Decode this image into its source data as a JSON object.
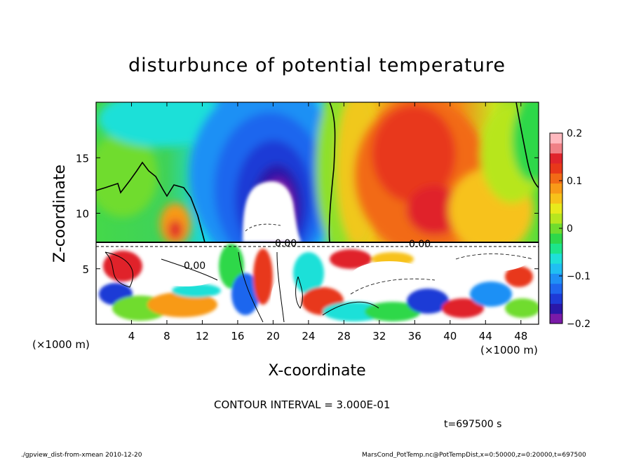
{
  "chart_data": {
    "type": "heatmap",
    "title": "disturbunce of potential temperature",
    "xlabel": "X-coordinate",
    "ylabel": "Z-coordinate",
    "x_unit": "(×1000 m)",
    "x_unit_right": "(×1000 m)",
    "y_unit": "",
    "xlim": [
      0,
      50
    ],
    "ylim": [
      0,
      20
    ],
    "x_ticks": [
      4,
      8,
      12,
      16,
      20,
      24,
      28,
      32,
      36,
      40,
      44,
      48
    ],
    "y_ticks": [
      5,
      10,
      15
    ],
    "colorbar": {
      "range": [
        -0.2,
        0.2
      ],
      "ticks": [
        -0.2,
        -0.1,
        0,
        0.1,
        0.2
      ],
      "tick_labels": [
        "−0.2",
        "−0.1",
        "0",
        "0.1",
        "0.2"
      ],
      "colors": [
        "#7a1aa8",
        "#2a17a8",
        "#1e3ad6",
        "#1f66ee",
        "#1f90f5",
        "#20bff2",
        "#1fe0d8",
        "#1de58a",
        "#2ed84a",
        "#6fdc2e",
        "#b7e61f",
        "#e8ea1c",
        "#f7c21a",
        "#f89a18",
        "#f26a16",
        "#e8381a",
        "#e0242c",
        "#f08086",
        "#ffb9bf"
      ]
    },
    "contour_interval_text": "CONTOUR INTERVAL = 3.000E-01",
    "contour_labels": [
      "0.00",
      "0.00",
      "0.00"
    ],
    "series": [
      {
        "name": "",
        "features": [
          {
            "x": 20.5,
            "z": 10.5,
            "value": -0.2,
            "kind": "cold core (white, below range)"
          },
          {
            "x": 35,
            "z": 12,
            "value": 0.15,
            "kind": "warm region"
          },
          {
            "x": 18,
            "z": 13,
            "value": -0.16,
            "kind": "cold region"
          },
          {
            "x": 4,
            "z": 12,
            "value": 0.03,
            "kind": "near-neutral region"
          },
          {
            "x": 45,
            "z": 16,
            "value": 0.06,
            "kind": "near-neutral region"
          }
        ]
      }
    ]
  },
  "footer": {
    "time_label": "t=697500 s",
    "left_note": "./gpview_dist-from-xmean  2010-12-20",
    "right_note": "MarsCond_PotTemp.nc@PotTempDist,x=0:50000,z=0:20000,t=697500"
  }
}
